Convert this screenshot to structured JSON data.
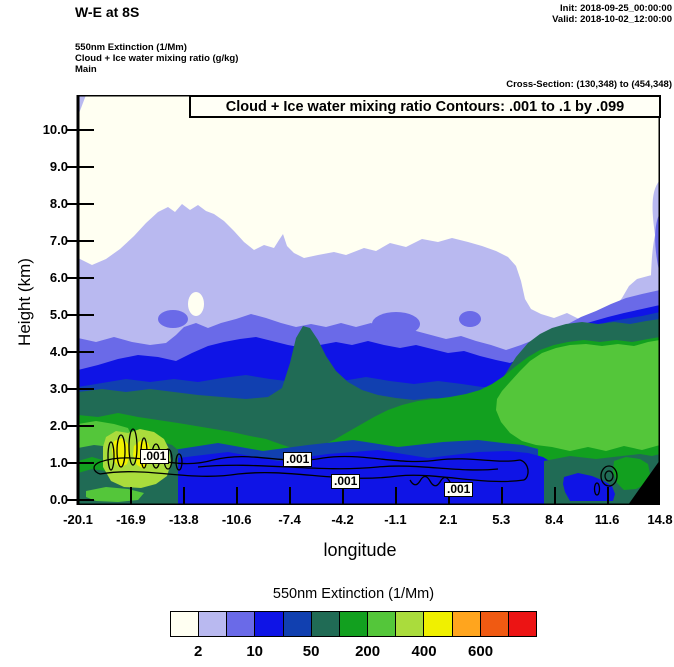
{
  "header": {
    "title": "W-E at 8S",
    "init_label": "Init: 2018-09-25_00:00:00",
    "valid_label": "Valid: 2018-10-02_12:00:00",
    "field_lines": [
      "550nm Extinction  (1/Mm)",
      "Cloud + Ice water mixing ratio  (g/kg)",
      "Main"
    ],
    "cross_section": "Cross-Section: (130,348) to (454,348)"
  },
  "plot": {
    "inner_title": "Cloud + Ice water mixing ratio Contours: .001 to .1 by .099",
    "x_axis": {
      "label": "longitude",
      "ticks": [
        "-20.1",
        "-16.9",
        "-13.8",
        "-10.6",
        "-7.4",
        "-4.2",
        "-1.1",
        "2.1",
        "5.3",
        "8.4",
        "11.6",
        "14.8"
      ]
    },
    "y_axis": {
      "label": "Height (km)",
      "ticks": [
        "0.0",
        "1.0",
        "2.0",
        "3.0",
        "4.0",
        "5.0",
        "6.0",
        "7.0",
        "8.0",
        "9.0",
        "10.0"
      ]
    },
    "contour_labels": [
      ".001",
      ".001",
      ".001",
      ".001"
    ]
  },
  "legend": {
    "title": "550nm Extinction  (1/Mm)",
    "values": [
      "2",
      "10",
      "50",
      "200",
      "400",
      "600"
    ],
    "colors": [
      "#FFFFF2",
      "#B9B9F0",
      "#6A6AE8",
      "#0F14E6",
      "#1140B0",
      "#206B55",
      "#12A01F",
      "#54C63A",
      "#AADC3C",
      "#F0F000",
      "#FFA51E",
      "#F05A12",
      "#EC1414"
    ]
  },
  "chart_data": {
    "type": "filled_contour_cross_section",
    "title": "W-E at 8S",
    "shaded_field": {
      "name": "550nm Extinction",
      "units": "1/Mm",
      "colorbar_labeled_values": [
        2,
        10,
        50,
        200,
        400,
        600
      ],
      "n_color_bins": 13,
      "palette": [
        "#FFFFF2",
        "#B9B9F0",
        "#6A6AE8",
        "#0F14E6",
        "#1140B0",
        "#206B55",
        "#12A01F",
        "#54C63A",
        "#AADC3C",
        "#F0F000",
        "#FFA51E",
        "#F05A12",
        "#EC1414"
      ]
    },
    "line_field": {
      "name": "Cloud + Ice water mixing ratio",
      "units": "g/kg",
      "contour_spec": ".001 to .1 by .099",
      "contour_levels": [
        0.001,
        0.1
      ],
      "visible_line_labels": [
        ".001",
        ".001",
        ".001",
        ".001"
      ]
    },
    "x": {
      "label": "longitude",
      "ticks": [
        -20.1,
        -16.9,
        -13.8,
        -10.6,
        -7.4,
        -4.2,
        -1.1,
        2.1,
        5.3,
        8.4,
        11.6,
        14.8
      ],
      "range": [
        -20.1,
        14.8
      ]
    },
    "y": {
      "label": "Height (km)",
      "ticks": [
        0,
        1,
        2,
        3,
        4,
        5,
        6,
        7,
        8,
        9,
        10
      ],
      "range": [
        0,
        10.9
      ]
    },
    "init_time": "2018-09-25_00:00:00",
    "valid_time": "2018-10-02_12:00:00",
    "cross_section_grid": "(130,348) to (454,348)",
    "features": [
      "clear (white) region above ~7 km across most of section",
      "lavender/blue extinction layer 4-7 km sloping across section with white bay near lon 5-8",
      "dark teal and green high-extinction air mass 1-5 km over eastern half (lon > -5)",
      "yellow extinction maximum (~400-600 /Mm) near 1 km around lon -17 to -16",
      "blue low-level band 0-1 km through middle of section",
      "0.001 g/kg cloud+ice contour band near 1 km with labeled loops",
      "black terrain wedge at bottom-right near lon 14"
    ]
  }
}
